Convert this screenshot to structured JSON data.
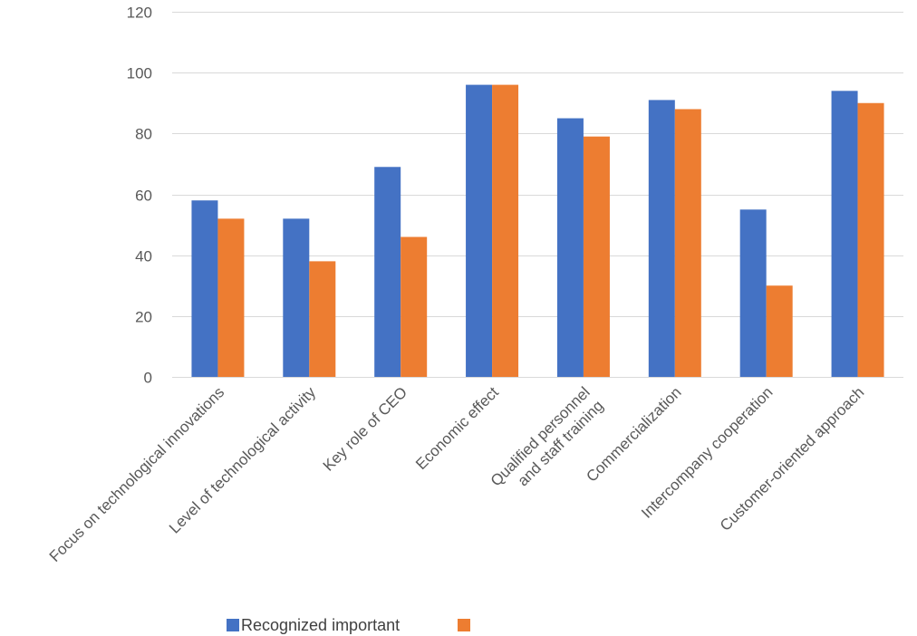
{
  "chart_data": {
    "type": "bar",
    "categories": [
      "Focus on technological innovations",
      "Level of technological activity",
      "Key role of CEO",
      "Economic effect",
      "Qualified personnel and staff training",
      "Commercialization",
      "Intercompany cooperation",
      "Customer-oriented approach"
    ],
    "category_lines": [
      [
        "Focus on technological innovations"
      ],
      [
        "Level of technological activity"
      ],
      [
        "Key role of CEO"
      ],
      [
        "Economic effect"
      ],
      [
        "Qualified personnel",
        "and staff training"
      ],
      [
        "Commercialization"
      ],
      [
        "Intercompany cooperation"
      ],
      [
        "Customer-oriented approach"
      ]
    ],
    "series": [
      {
        "name": "Recognized important",
        "color": "#4472C4",
        "values": [
          58,
          52,
          69,
          96,
          85,
          91,
          55,
          94
        ]
      },
      {
        "name": "",
        "color": "#ED7D31",
        "values": [
          52,
          38,
          46,
          96,
          79,
          88,
          30,
          90
        ]
      }
    ],
    "ylim": [
      0,
      120
    ],
    "yticks": [
      0,
      20,
      40,
      60,
      80,
      100,
      120
    ],
    "grid": true,
    "legend_position": "bottom"
  }
}
